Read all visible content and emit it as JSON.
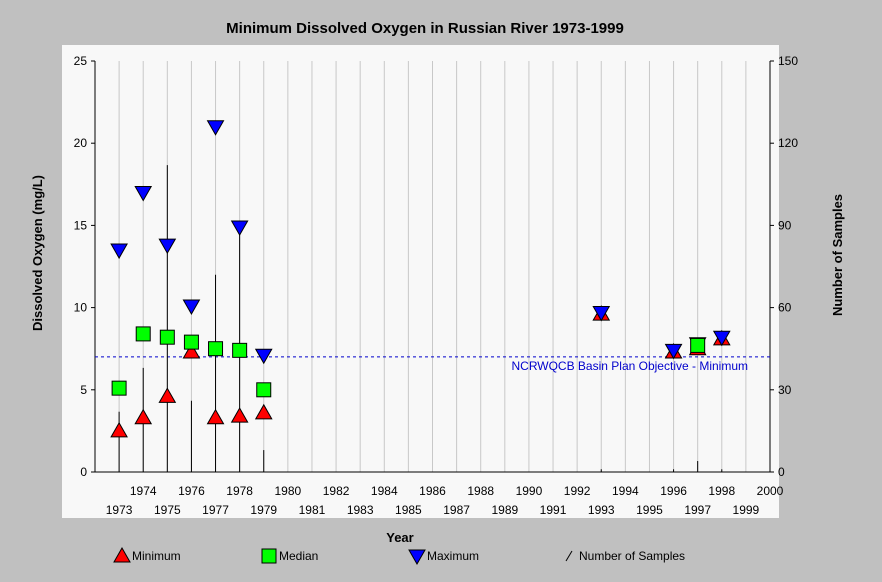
{
  "chart_data": {
    "type": "scatter",
    "title": "Minimum Dissolved Oxygen in Russian River 1973-1999",
    "xlabel": "Year",
    "ylabel": "Dissolved Oxygen (mg/L)",
    "y2label": "Number of Samples",
    "xlim": [
      1972,
      2000
    ],
    "ylim": [
      0,
      25
    ],
    "y2lim": [
      0,
      150
    ],
    "grid": "vertical",
    "y_ticks": [
      0,
      5,
      10,
      15,
      20,
      25
    ],
    "y2_ticks": [
      0,
      30,
      60,
      90,
      120,
      150
    ],
    "x_ticks_upper": [
      "1974",
      "1976",
      "1978",
      "1980",
      "1982",
      "1984",
      "1986",
      "1988",
      "1990",
      "1992",
      "1994",
      "1996",
      "1998",
      "2000"
    ],
    "x_ticks_lower": [
      "1973",
      "1975",
      "1977",
      "1979",
      "1981",
      "1983",
      "1985",
      "1987",
      "1989",
      "1991",
      "1993",
      "1995",
      "1997",
      "1999"
    ],
    "reference_line": {
      "value": 7,
      "label": "NCRWQCB Basin Plan Objective - Minimum",
      "color": "#0000cc"
    },
    "series": [
      {
        "name": "Minimum",
        "marker": "triangle-up",
        "color": "#ff0000",
        "points": [
          {
            "x": 1973,
            "y": 2.5
          },
          {
            "x": 1974,
            "y": 3.3
          },
          {
            "x": 1975,
            "y": 4.6
          },
          {
            "x": 1976,
            "y": 7.3
          },
          {
            "x": 1977,
            "y": 3.3
          },
          {
            "x": 1978,
            "y": 3.4
          },
          {
            "x": 1979,
            "y": 3.6
          },
          {
            "x": 1993,
            "y": 9.6
          },
          {
            "x": 1996,
            "y": 7.3
          },
          {
            "x": 1997,
            "y": 7.5
          },
          {
            "x": 1998,
            "y": 8.1
          }
        ]
      },
      {
        "name": "Median",
        "marker": "square",
        "color": "#00ff00",
        "points": [
          {
            "x": 1973,
            "y": 5.1
          },
          {
            "x": 1974,
            "y": 8.4
          },
          {
            "x": 1975,
            "y": 8.2
          },
          {
            "x": 1976,
            "y": 7.9
          },
          {
            "x": 1977,
            "y": 7.5
          },
          {
            "x": 1978,
            "y": 7.4
          },
          {
            "x": 1979,
            "y": 5.0
          },
          {
            "x": 1997,
            "y": 7.7
          }
        ]
      },
      {
        "name": "Maximum",
        "marker": "triangle-down",
        "color": "#0000ff",
        "points": [
          {
            "x": 1973,
            "y": 13.5
          },
          {
            "x": 1974,
            "y": 17.0
          },
          {
            "x": 1975,
            "y": 13.8
          },
          {
            "x": 1976,
            "y": 10.1
          },
          {
            "x": 1977,
            "y": 21.0
          },
          {
            "x": 1978,
            "y": 14.9
          },
          {
            "x": 1979,
            "y": 7.1
          },
          {
            "x": 1993,
            "y": 9.7
          },
          {
            "x": 1996,
            "y": 7.4
          },
          {
            "x": 1997,
            "y": 7.8
          },
          {
            "x": 1998,
            "y": 8.2
          }
        ]
      },
      {
        "name": "Number of Samples",
        "marker": "bar-line",
        "color": "#000000",
        "axis": "right",
        "points": [
          {
            "x": 1973,
            "y": 22
          },
          {
            "x": 1974,
            "y": 38
          },
          {
            "x": 1975,
            "y": 112
          },
          {
            "x": 1976,
            "y": 26
          },
          {
            "x": 1977,
            "y": 72
          },
          {
            "x": 1978,
            "y": 88
          },
          {
            "x": 1979,
            "y": 8
          },
          {
            "x": 1993,
            "y": 1
          },
          {
            "x": 1996,
            "y": 1
          },
          {
            "x": 1997,
            "y": 4
          },
          {
            "x": 1998,
            "y": 1
          }
        ]
      }
    ],
    "legend": {
      "placement": "bottom",
      "items": [
        {
          "label": "Minimum",
          "marker": "triangle-up",
          "color": "#ff0000"
        },
        {
          "label": "Median",
          "marker": "square",
          "color": "#00ff00"
        },
        {
          "label": "Maximum",
          "marker": "triangle-down",
          "color": "#0000ff"
        },
        {
          "label": "Number of Samples",
          "marker": "slash",
          "color": "#000000"
        }
      ]
    },
    "colors": {
      "background": "#c0c0c0",
      "plot_area": "#f8f8f8",
      "grid": "#c8c8c8"
    }
  }
}
